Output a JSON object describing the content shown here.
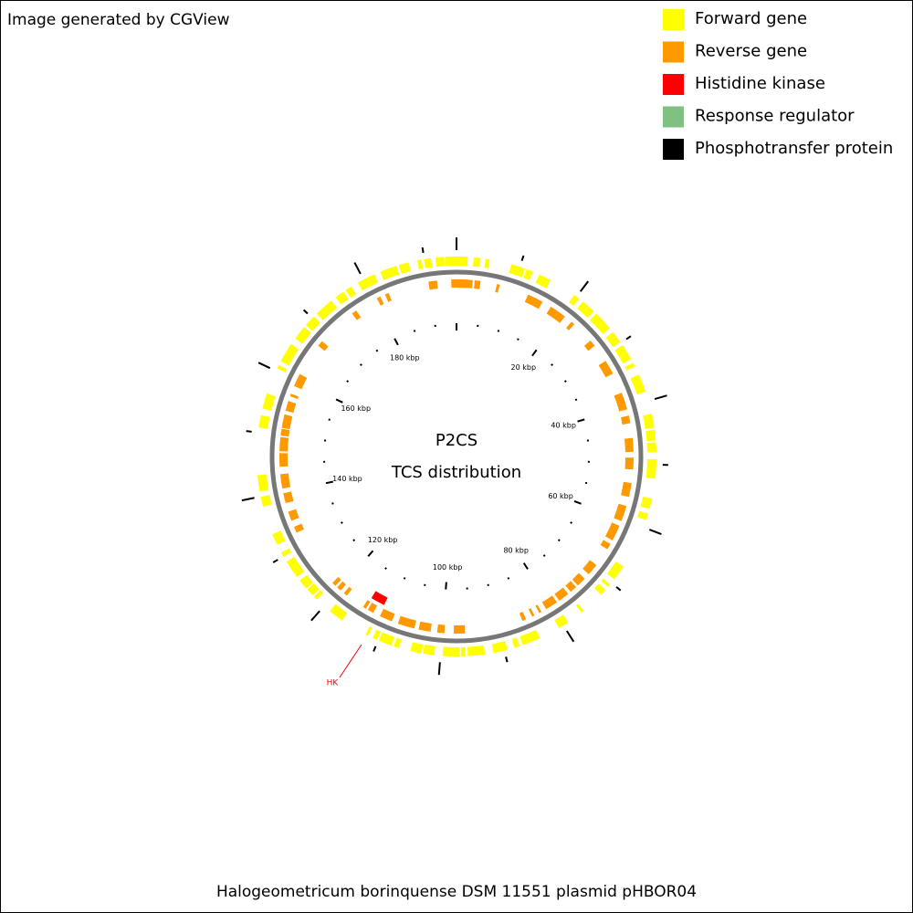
{
  "header": {
    "credit": "Image generated by CGView"
  },
  "legend": [
    {
      "label": "Forward gene",
      "color": "#ffff00"
    },
    {
      "label": "Reverse gene",
      "color": "#ff9900"
    },
    {
      "label": "Histidine kinase",
      "color": "#ff0000"
    },
    {
      "label": "Response regulator",
      "color": "#80c080"
    },
    {
      "label": "Phosphotransfer protein",
      "color": "#000000"
    }
  ],
  "center": {
    "line1": "P2CS",
    "line2": "TCS distribution"
  },
  "ruler": {
    "labels": [
      "20 kbp",
      "40 kbp",
      "60 kbp",
      "80 kbp",
      "100 kbp",
      "120 kbp",
      "140 kbp",
      "160 kbp",
      "180 kbp"
    ]
  },
  "annotations": [
    {
      "label": "HK"
    }
  ],
  "footer": {
    "title": "Halogeometricum borinquense DSM 11551 plasmid pHBOR04"
  }
}
